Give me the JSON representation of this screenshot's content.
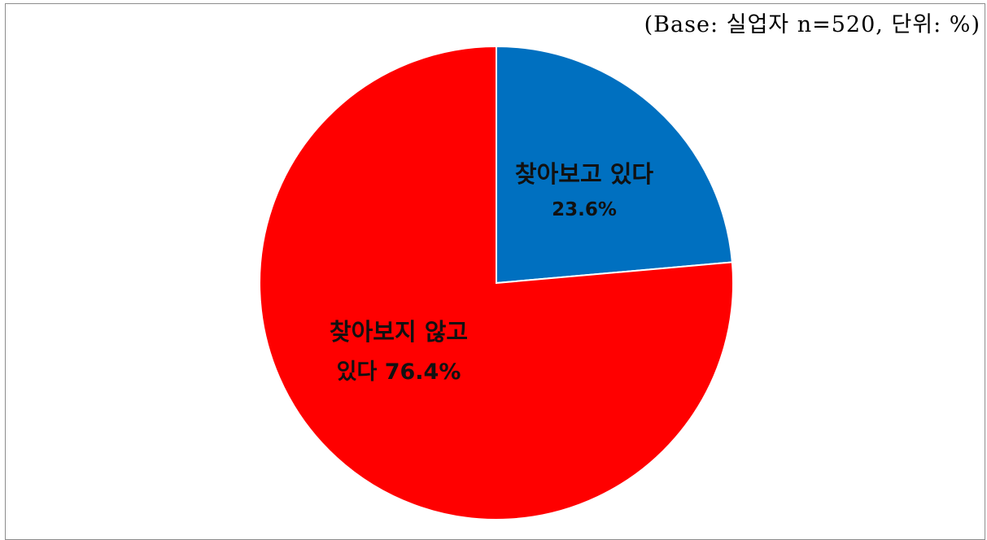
{
  "base_note": "(Base: 실업자 n=520, 단위: %)",
  "chart_data": {
    "type": "pie",
    "start_angle_deg": 0,
    "direction": "clockwise",
    "slices": [
      {
        "label": "찾아보고 있다",
        "value": 23.6,
        "value_text": "23.6%",
        "color": "#0070c0"
      },
      {
        "label": "찾아보지 않고 있다",
        "label_lines": [
          "찾아보지 않고",
          "있다 76.4%"
        ],
        "value": 76.4,
        "value_text": "76.4%",
        "color": "#ff0000"
      }
    ]
  }
}
